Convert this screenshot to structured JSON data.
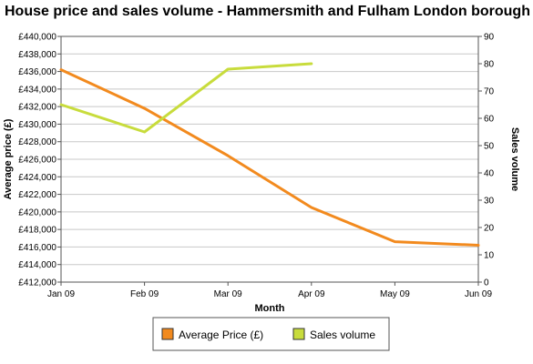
{
  "chart_data": {
    "type": "line",
    "title": "House price and sales volume - Hammersmith and Fulham London borough",
    "xlabel": "Month",
    "ylabel": "Average price (£)",
    "y2label": "Sales volume",
    "categories": [
      "Jan 09",
      "Feb 09",
      "Mar 09",
      "Apr 09",
      "May 09",
      "Jun 09"
    ],
    "ylim": [
      412000,
      440000
    ],
    "y2lim": [
      0,
      90
    ],
    "y_ticks": [
      "£412,000",
      "£414,000",
      "£416,000",
      "£418,000",
      "£420,000",
      "£422,000",
      "£424,000",
      "£426,000",
      "£428,000",
      "£430,000",
      "£432,000",
      "£434,000",
      "£436,000",
      "£438,000",
      "£440,000"
    ],
    "y2_ticks": [
      "0",
      "10",
      "20",
      "30",
      "40",
      "50",
      "60",
      "70",
      "80",
      "90"
    ],
    "grid": true,
    "legend_position": "bottom",
    "series": [
      {
        "name": "Average Price (£)",
        "axis": "left",
        "color": "#f28a1e",
        "values": [
          436200,
          431800,
          426400,
          420500,
          416600,
          416200
        ]
      },
      {
        "name": "Sales volume",
        "axis": "right",
        "color": "#c8dc3c",
        "values": [
          65,
          55,
          78,
          80,
          null,
          null
        ]
      }
    ]
  }
}
